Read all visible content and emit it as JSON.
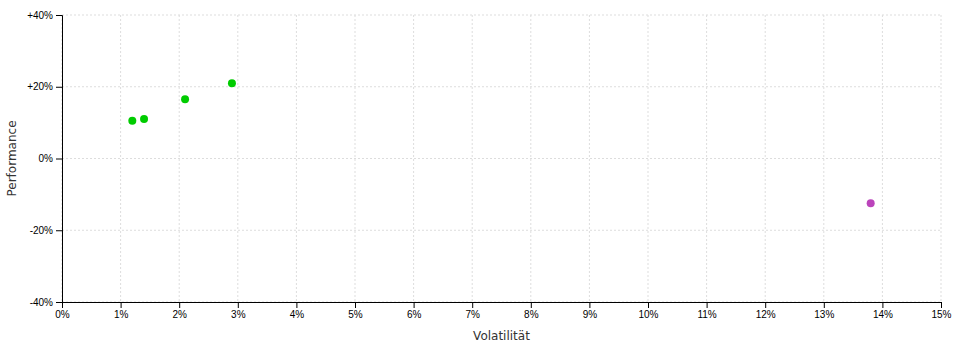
{
  "chart_data": {
    "type": "scatter",
    "xlabel": "Volatilität",
    "ylabel": "Performance",
    "xlim": [
      0,
      0.15
    ],
    "ylim": [
      -0.4,
      0.4
    ],
    "xticks": [
      {
        "value": 0.0,
        "label": "0%"
      },
      {
        "value": 0.01,
        "label": "1%"
      },
      {
        "value": 0.02,
        "label": "2%"
      },
      {
        "value": 0.03,
        "label": "3%"
      },
      {
        "value": 0.04,
        "label": "4%"
      },
      {
        "value": 0.05,
        "label": "5%"
      },
      {
        "value": 0.06,
        "label": "6%"
      },
      {
        "value": 0.07,
        "label": "7%"
      },
      {
        "value": 0.08,
        "label": "8%"
      },
      {
        "value": 0.09,
        "label": "9%"
      },
      {
        "value": 0.1,
        "label": "10%"
      },
      {
        "value": 0.11,
        "label": "11%"
      },
      {
        "value": 0.12,
        "label": "12%"
      },
      {
        "value": 0.13,
        "label": "13%"
      },
      {
        "value": 0.14,
        "label": "14%"
      },
      {
        "value": 0.15,
        "label": "15%"
      }
    ],
    "yticks": [
      {
        "value": -0.4,
        "label": "-40%"
      },
      {
        "value": -0.2,
        "label": "-20%"
      },
      {
        "value": 0.0,
        "label": "0%"
      },
      {
        "value": 0.2,
        "label": "+20%"
      },
      {
        "value": 0.4,
        "label": "+40%"
      }
    ],
    "grid": true,
    "series": [
      {
        "color": "#00cc00",
        "x": [
          0.012,
          0.014,
          0.021,
          0.029
        ],
        "values": [
          0.105,
          0.11,
          0.165,
          0.21
        ]
      },
      {
        "color": "#bb44bb",
        "x": [
          0.138
        ],
        "values": [
          -0.125
        ]
      }
    ]
  }
}
